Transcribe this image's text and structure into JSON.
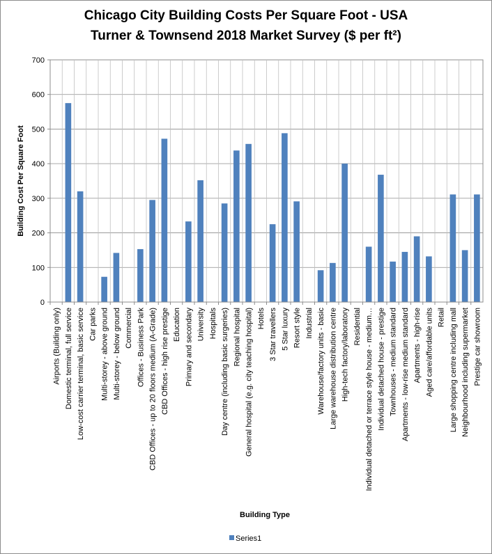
{
  "chart_data": {
    "type": "bar",
    "title": [
      "Chicago City Building Costs Per Square Foot - USA",
      "Turner & Townsend 2018 Market Survey ($ per ft²)"
    ],
    "xlabel": "Building Type",
    "ylabel": "Building Cost Per Square Foot",
    "ylim": [
      0,
      700
    ],
    "yticks": [
      0,
      100,
      200,
      300,
      400,
      500,
      600,
      700
    ],
    "grid": true,
    "legend_position": "bottom",
    "bar_color": "#4f81bd",
    "categories": [
      "Airports (Building only)",
      "Domestic terminal, full service",
      "Low-cost carrier terminal, basic service",
      "Car parks",
      "Multi-storey - above ground",
      "Multi-storey - below ground",
      "Commercial",
      "Offices - Business Park",
      "CBD Offices - up to 20 floors medium (A-Grade)",
      "CBD Offices - high rise prestige",
      "Education",
      "Primary and secondary",
      "University",
      "Hospitals",
      "Day centre (including basic surgeries)",
      "Regional hospital",
      "General hospital (e.g. city teaching hospital)",
      "Hotels",
      "3 Star travellers",
      "5 Star luxury",
      "Resort style",
      "Industrial",
      "Warehouse/factory units - basic",
      "Large warehouse distribution centre",
      "High-tech factory/laboratory",
      "Residential",
      "Individual detached or terrace style house - medium…",
      "Individual detached house - prestige",
      "Townhouses - medium standard",
      "Apartments - low-rise medium standard",
      "Apartments - high-rise",
      "Aged care/affordable units",
      "Retail",
      "Large shopping centre including mall",
      "Neighbourhood including supermarket",
      "Prestige car showroom"
    ],
    "series": [
      {
        "name": "Series1",
        "values": [
          0,
          575,
          320,
          0,
          73,
          142,
          0,
          153,
          295,
          472,
          0,
          233,
          352,
          0,
          285,
          438,
          457,
          0,
          225,
          488,
          291,
          0,
          92,
          113,
          400,
          0,
          160,
          368,
          117,
          145,
          190,
          132,
          0,
          311,
          150,
          311
        ]
      }
    ]
  }
}
